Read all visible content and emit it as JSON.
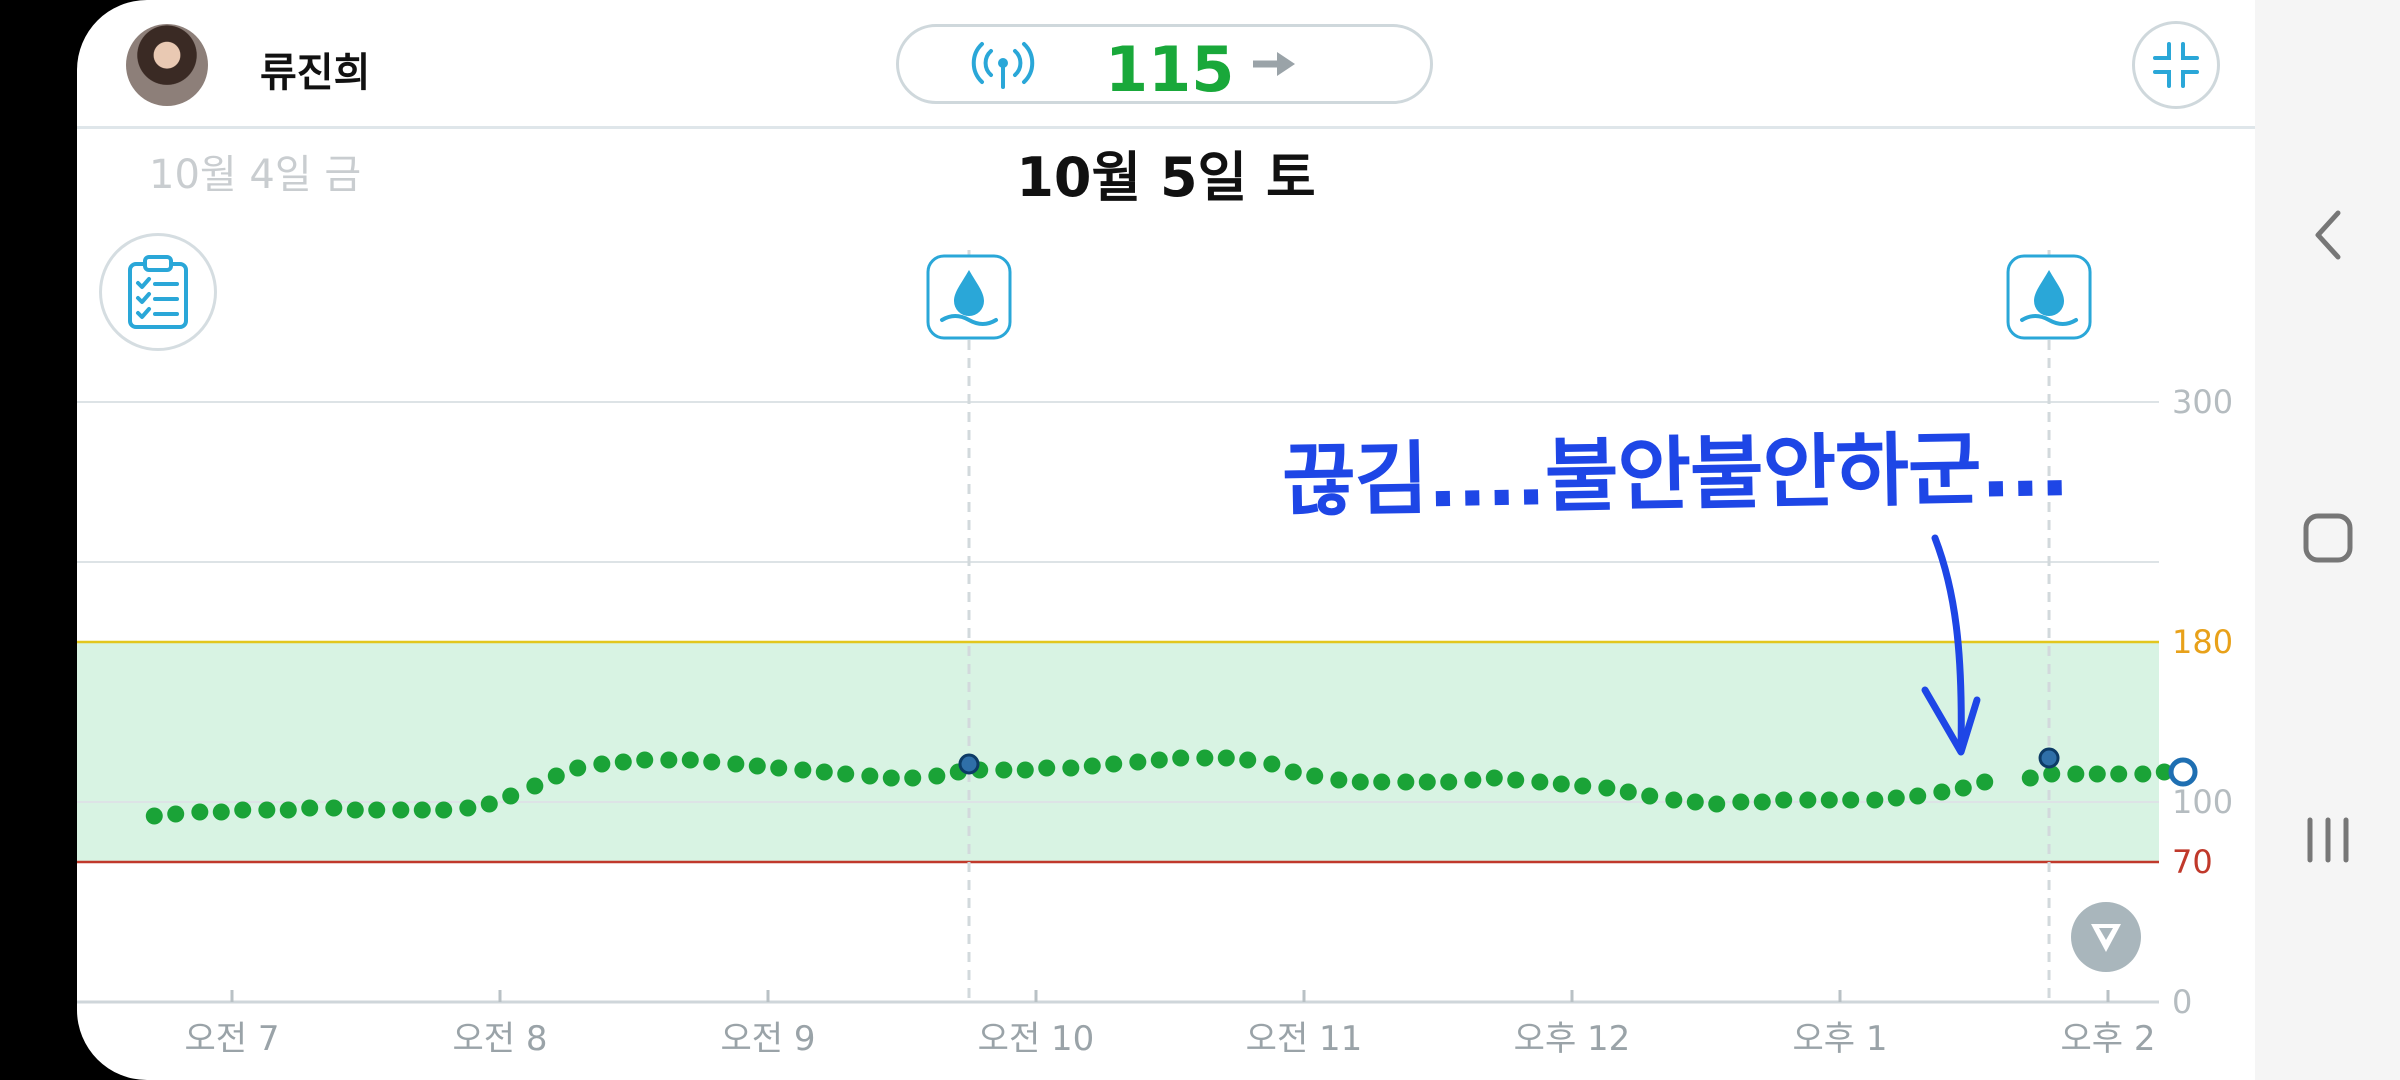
{
  "user": {
    "name": "류진희"
  },
  "glucose": {
    "value": "115",
    "trend": "steady"
  },
  "dates": {
    "previous": "10월 4일 금",
    "current": "10월 5일 토"
  },
  "annotation": {
    "text": "끊김....불안불안하군...",
    "color": "#1e46e6"
  },
  "colors": {
    "glucose_value": "#19a83a",
    "accent": "#2aa7d8",
    "target_band": "#d8f3e3",
    "high_line": "#e2c61d",
    "low_line": "#c0392b",
    "points": "#1aa337"
  },
  "icons": {
    "signal": "signal-icon",
    "trend": "arrow-right-icon",
    "collapse": "collapse-icon",
    "logbook": "clipboard-checklist-icon",
    "calibration": "water-drop-icon",
    "scroll": "arrow-down-icon",
    "nav_back": "chevron-left-icon",
    "nav_home": "home-icon",
    "nav_recent": "recents-icon"
  },
  "chart_data": {
    "type": "scatter",
    "title": "",
    "xlabel": "",
    "ylabel": "",
    "ylim": [
      0,
      300
    ],
    "y_ticks": [
      {
        "value": 300,
        "label": "300"
      },
      {
        "value": 180,
        "label": "180"
      },
      {
        "value": 100,
        "label": "100"
      },
      {
        "value": 70,
        "label": "70"
      },
      {
        "value": 0,
        "label": "0"
      }
    ],
    "x_ticks": [
      "오전 7",
      "오전 8",
      "오전 9",
      "오전 10",
      "오전 11",
      "오후 12",
      "오후 1",
      "오후 2"
    ],
    "x_range_hours": [
      6.7,
      14.5
    ],
    "target_range": {
      "low": 70,
      "high": 180
    },
    "calibration_markers": [
      {
        "hour": 9.75,
        "value": 119
      },
      {
        "hour": 13.78,
        "value": 122
      }
    ],
    "current_point": {
      "hour": 14.28,
      "value": 115
    },
    "series": [
      {
        "points": [
          [
            6.71,
            93
          ],
          [
            6.79,
            94
          ],
          [
            6.88,
            95
          ],
          [
            6.96,
            95
          ],
          [
            7.04,
            96
          ],
          [
            7.13,
            96
          ],
          [
            7.21,
            96
          ],
          [
            7.29,
            97
          ],
          [
            7.38,
            97
          ],
          [
            7.46,
            96
          ],
          [
            7.54,
            96
          ],
          [
            7.63,
            96
          ],
          [
            7.71,
            96
          ],
          [
            7.79,
            96
          ],
          [
            7.88,
            97
          ],
          [
            7.96,
            99
          ],
          [
            8.04,
            103
          ],
          [
            8.13,
            108
          ],
          [
            8.21,
            113
          ],
          [
            8.29,
            117
          ],
          [
            8.38,
            119
          ],
          [
            8.46,
            120
          ],
          [
            8.54,
            121
          ],
          [
            8.63,
            121
          ],
          [
            8.71,
            121
          ],
          [
            8.79,
            120
          ],
          [
            8.88,
            119
          ],
          [
            8.96,
            118
          ],
          [
            9.04,
            117
          ],
          [
            9.13,
            116
          ],
          [
            9.21,
            115
          ],
          [
            9.29,
            114
          ],
          [
            9.38,
            113
          ],
          [
            9.46,
            112
          ],
          [
            9.54,
            112
          ],
          [
            9.63,
            113
          ],
          [
            9.71,
            115
          ],
          [
            9.79,
            116
          ],
          [
            9.88,
            116
          ],
          [
            9.96,
            116
          ],
          [
            10.04,
            117
          ],
          [
            10.13,
            117
          ],
          [
            10.21,
            118
          ],
          [
            10.29,
            119
          ],
          [
            10.38,
            120
          ],
          [
            10.46,
            121
          ],
          [
            10.54,
            122
          ],
          [
            10.63,
            122
          ],
          [
            10.71,
            122
          ],
          [
            10.79,
            121
          ],
          [
            10.88,
            119
          ],
          [
            10.96,
            115
          ],
          [
            11.04,
            113
          ],
          [
            11.13,
            111
          ],
          [
            11.21,
            110
          ],
          [
            11.29,
            110
          ],
          [
            11.38,
            110
          ],
          [
            11.46,
            110
          ],
          [
            11.54,
            110
          ],
          [
            11.63,
            111
          ],
          [
            11.71,
            112
          ],
          [
            11.79,
            111
          ],
          [
            11.88,
            110
          ],
          [
            11.96,
            109
          ],
          [
            12.04,
            108
          ],
          [
            12.13,
            107
          ],
          [
            12.21,
            105
          ],
          [
            12.29,
            103
          ],
          [
            12.38,
            101
          ],
          [
            12.46,
            100
          ],
          [
            12.54,
            99
          ],
          [
            12.63,
            100
          ],
          [
            12.71,
            100
          ],
          [
            12.79,
            101
          ],
          [
            12.88,
            101
          ],
          [
            12.96,
            101
          ],
          [
            13.04,
            101
          ],
          [
            13.13,
            101
          ],
          [
            13.21,
            102
          ],
          [
            13.29,
            103
          ],
          [
            13.38,
            105
          ],
          [
            13.46,
            107
          ],
          [
            13.54,
            110
          ],
          [
            13.71,
            112
          ],
          [
            13.79,
            114
          ],
          [
            13.88,
            114
          ],
          [
            13.96,
            114
          ],
          [
            14.04,
            114
          ],
          [
            14.13,
            114
          ],
          [
            14.21,
            115
          ]
        ]
      }
    ]
  }
}
